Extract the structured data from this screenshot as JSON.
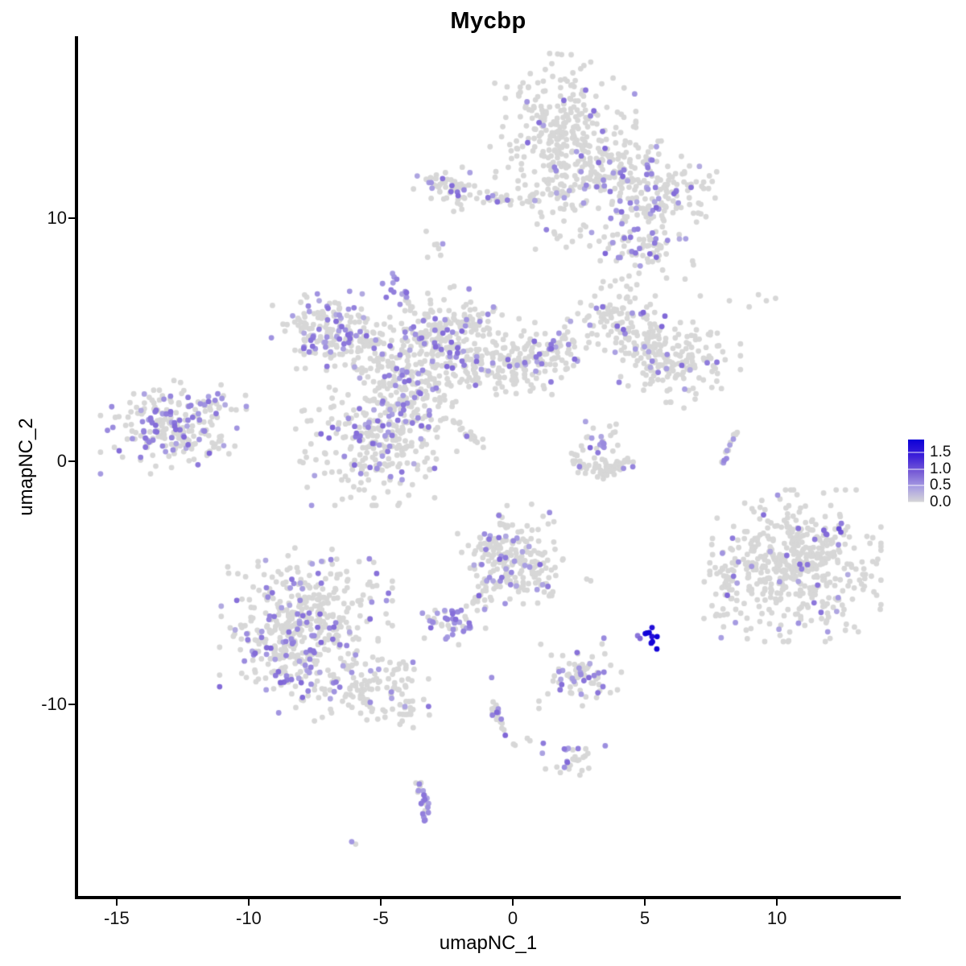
{
  "chart_data": {
    "type": "scatter",
    "title": "Mycbp",
    "xlabel": "umapNC_1",
    "ylabel": "umapNC_2",
    "xlim": [
      -16.52,
      14.66
    ],
    "ylim": [
      -17.95,
      17.48
    ],
    "xticks": [
      {
        "value": -15,
        "label": "-15"
      },
      {
        "value": -10,
        "label": "-10"
      },
      {
        "value": -5,
        "label": "-5"
      },
      {
        "value": 0,
        "label": "0"
      },
      {
        "value": 5,
        "label": "5"
      },
      {
        "value": 10,
        "label": "10"
      }
    ],
    "yticks": [
      {
        "value": 10,
        "label": "10"
      },
      {
        "value": 0,
        "label": "0"
      },
      {
        "value": -10,
        "label": "-10"
      }
    ],
    "grid": false,
    "legend_position": "right",
    "legend": {
      "vmin": 0,
      "vmax": 1.9,
      "ticks": [
        {
          "value": 1.5,
          "label": "1.5"
        },
        {
          "value": 1.0,
          "label": "1.0"
        },
        {
          "value": 0.5,
          "label": "0.5"
        },
        {
          "value": 0.0,
          "label": "0.0"
        }
      ]
    },
    "colors": {
      "grey": "#d7d7d7",
      "gradient_stops": [
        [
          0,
          "#d7d7d7"
        ],
        [
          0.45,
          "#a99fe2"
        ],
        [
          0.9,
          "#7a5fd6"
        ],
        [
          1.4,
          "#3c20d9"
        ],
        [
          1.9,
          "#0d00d8"
        ]
      ]
    },
    "point_radius_px": 3.4,
    "clusters": [
      {
        "name": "top-main",
        "shape": "gauss",
        "x": 1.9,
        "y": 13.65,
        "sx": 1.15,
        "sy": 1.3,
        "n": 290,
        "frac": 0.07
      },
      {
        "name": "top-below",
        "shape": "gauss",
        "x": 2.0,
        "y": 11.0,
        "sx": 0.75,
        "sy": 0.95,
        "n": 70,
        "frac": 0.1
      },
      {
        "name": "top-right-lobe",
        "shape": "gauss",
        "x": 5.2,
        "y": 11.25,
        "sx": 1.05,
        "sy": 0.8,
        "n": 175,
        "frac": 0.2
      },
      {
        "name": "top-bridge",
        "shape": "gauss",
        "x": 3.85,
        "y": 11.9,
        "sx": 0.6,
        "sy": 0.5,
        "n": 50,
        "frac": 0.1
      },
      {
        "name": "top-left-small",
        "shape": "gauss",
        "x": -2.2,
        "y": 11.2,
        "sx": 0.65,
        "sy": 0.45,
        "n": 60,
        "frac": 0.12
      },
      {
        "name": "top-lower",
        "shape": "gauss",
        "x": 4.8,
        "y": 8.95,
        "sx": 0.85,
        "sy": 0.78,
        "n": 90,
        "frac": 0.18
      },
      {
        "name": "top-sparse",
        "shape": "gauss",
        "x": 1.9,
        "y": 9.3,
        "sx": 0.55,
        "sy": 0.4,
        "n": 6,
        "frac": 0
      },
      {
        "name": "tiny-a",
        "shape": "gauss",
        "x": -2.75,
        "y": 8.6,
        "sx": 0.22,
        "sy": 0.5,
        "n": 7,
        "frac": 0.14
      },
      {
        "name": "purple-knob",
        "shape": "gauss",
        "x": -4.55,
        "y": 7.2,
        "sx": 0.27,
        "sy": 0.27,
        "n": 9,
        "frac": 0.85,
        "vmin": 0.45,
        "vmax": 0.75
      },
      {
        "name": "midx-nw",
        "shape": "gauss",
        "x": -7.1,
        "y": 5.45,
        "sx": 0.85,
        "sy": 0.7,
        "n": 130,
        "frac": 0.3
      },
      {
        "name": "midx-arc",
        "shape": "gauss",
        "x": -5.5,
        "y": 4.6,
        "sx": 1.0,
        "sy": 0.78,
        "n": 115,
        "frac": 0.15
      },
      {
        "name": "midx-center",
        "shape": "gauss",
        "x": -3.6,
        "y": 3.6,
        "sx": 0.95,
        "sy": 0.8,
        "n": 160,
        "frac": 0.2
      },
      {
        "name": "midx-ne",
        "shape": "gauss",
        "x": -1.8,
        "y": 5.75,
        "sx": 0.7,
        "sy": 0.6,
        "n": 90,
        "frac": 0.18
      },
      {
        "name": "midx-neck",
        "shape": "gauss",
        "x": -2.95,
        "y": 4.85,
        "sx": 0.45,
        "sy": 0.5,
        "n": 50,
        "frac": 0.2
      },
      {
        "name": "midx-e1",
        "shape": "gauss",
        "x": -0.8,
        "y": 4.1,
        "sx": 0.8,
        "sy": 0.6,
        "n": 110,
        "frac": 0.1
      },
      {
        "name": "midx-e2",
        "shape": "gauss",
        "x": 1.05,
        "y": 4.3,
        "sx": 0.75,
        "sy": 0.65,
        "n": 110,
        "frac": 0.1
      },
      {
        "name": "midx-ne2",
        "shape": "gauss",
        "x": 3.8,
        "y": 6.0,
        "sx": 0.75,
        "sy": 0.6,
        "n": 90,
        "frac": 0.18
      },
      {
        "name": "midx-bridge",
        "shape": "gauss",
        "x": 4.95,
        "y": 4.9,
        "sx": 0.5,
        "sy": 0.5,
        "n": 40,
        "frac": 0.1
      },
      {
        "name": "midx-east",
        "shape": "gauss",
        "x": 6.1,
        "y": 4.15,
        "sx": 1.05,
        "sy": 0.85,
        "n": 160,
        "frac": 0.07
      },
      {
        "name": "midx-south",
        "shape": "gauss",
        "x": -5.1,
        "y": 0.7,
        "sx": 1.3,
        "sy": 1.05,
        "n": 270,
        "frac": 0.15
      },
      {
        "name": "midx-south-top",
        "shape": "gauss",
        "x": -4.2,
        "y": 2.35,
        "sx": 0.6,
        "sy": 0.55,
        "n": 60,
        "frac": 0.2
      },
      {
        "name": "far-left",
        "shape": "gauss",
        "x": -12.85,
        "y": 1.4,
        "sx": 1.15,
        "sy": 0.8,
        "n": 230,
        "frac": 0.32
      },
      {
        "name": "crescent-fill",
        "shape": "gauss",
        "x": 3.3,
        "y": 0.7,
        "sx": 0.55,
        "sy": 0.4,
        "n": 25,
        "frac": 0.2
      },
      {
        "name": "right-big",
        "shape": "gauss",
        "x": 10.7,
        "y": -4.3,
        "sx": 1.35,
        "sy": 1.3,
        "n": 470,
        "frac": 0.07
      },
      {
        "name": "right-appendage",
        "shape": "gauss",
        "x": 8.15,
        "y": -5.1,
        "sx": 0.38,
        "sy": 0.85,
        "n": 45,
        "frac": 0.1
      },
      {
        "name": "mid-bottom",
        "shape": "gauss",
        "x": -0.05,
        "y": -3.85,
        "sx": 0.85,
        "sy": 0.9,
        "n": 210,
        "frac": 0.13
      },
      {
        "name": "purple-small",
        "shape": "gauss",
        "x": -2.35,
        "y": -6.6,
        "sx": 0.55,
        "sy": 0.32,
        "n": 48,
        "frac": 0.5,
        "vmin": 0.4,
        "vmax": 0.8
      },
      {
        "name": "bottomleft-top",
        "shape": "gauss",
        "x": -7.8,
        "y": -5.85,
        "sx": 1.35,
        "sy": 0.95,
        "n": 230,
        "frac": 0.15
      },
      {
        "name": "bottomleft-mid",
        "shape": "gauss",
        "x": -8.1,
        "y": -7.95,
        "sx": 1.25,
        "sy": 1.0,
        "n": 260,
        "frac": 0.2
      },
      {
        "name": "bottomleft-tail",
        "shape": "gauss",
        "x": -5.35,
        "y": -9.25,
        "sx": 0.9,
        "sy": 0.6,
        "n": 100,
        "frac": 0.15
      },
      {
        "name": "bottomleft-ext",
        "shape": "gauss",
        "x": -4.0,
        "y": -10.2,
        "sx": 0.35,
        "sy": 0.35,
        "n": 18,
        "frac": 0.2
      },
      {
        "name": "low-mid-cluster",
        "shape": "gauss",
        "x": 2.55,
        "y": -8.85,
        "sx": 0.65,
        "sy": 0.55,
        "n": 75,
        "frac": 0.35
      },
      {
        "name": "low-cluster2",
        "shape": "gauss",
        "x": 2.3,
        "y": -12.25,
        "sx": 0.5,
        "sy": 0.3,
        "n": 30,
        "frac": 0.35
      },
      {
        "name": "blue-blob",
        "shape": "gauss",
        "x": 5.15,
        "y": -7.1,
        "sx": 0.2,
        "sy": 0.26,
        "n": 9,
        "frac": 1.0,
        "vmin": 1.55,
        "vmax": 1.9
      },
      {
        "name": "blue-blob-light",
        "shape": "gauss",
        "x": 4.82,
        "y": -7.25,
        "sx": 0.1,
        "sy": 0.1,
        "n": 2,
        "frac": 1.0,
        "vmin": 0.7,
        "vmax": 0.9
      },
      {
        "name": "top-chain",
        "shape": "line",
        "x1": -1.1,
        "y1": 10.8,
        "x2": 0.9,
        "y2": 10.8,
        "n": 30,
        "jitter": 0.12,
        "frac": 0.05
      },
      {
        "name": "chain-up",
        "shape": "line",
        "x1": -3.85,
        "y1": 6.0,
        "x2": -4.05,
        "y2": 6.95,
        "n": 12,
        "jitter": 0.1,
        "frac": 0.3
      },
      {
        "name": "diag-trail",
        "shape": "line",
        "x1": -2.6,
        "y1": 1.95,
        "x2": -1.2,
        "y2": 0.7,
        "n": 22,
        "jitter": 0.08,
        "frac": 0.05
      },
      {
        "name": "farleft-tail",
        "shape": "line",
        "x1": -11.8,
        "y1": 2.35,
        "x2": -11.2,
        "y2": 2.8,
        "n": 8,
        "jitter": 0.1,
        "frac": 0.5
      },
      {
        "name": "midbottom-arm-left",
        "shape": "line",
        "x1": -1.0,
        "y1": -4.9,
        "x2": -1.5,
        "y2": -5.85,
        "n": 16,
        "jitter": 0.07,
        "frac": 0.1
      },
      {
        "name": "midbottom-arm-right",
        "shape": "line",
        "x1": 0.8,
        "y1": -4.55,
        "x2": 1.5,
        "y2": -5.65,
        "n": 22,
        "jitter": 0.1,
        "frac": 0.15
      },
      {
        "name": "low-trail",
        "shape": "line",
        "x1": -0.75,
        "y1": -9.95,
        "x2": 0.1,
        "y2": -11.95,
        "n": 22,
        "jitter": 0.08,
        "frac": 0.3
      },
      {
        "name": "crescent-arc",
        "shape": "curve",
        "p0": [
          1.95,
          0.4
        ],
        "p1": [
          3.3,
          -1.1
        ],
        "p2": [
          4.6,
          0.15
        ],
        "n": 60,
        "jitter": 0.13,
        "frac": 0.08
      },
      {
        "name": "sliver",
        "shape": "curve",
        "p0": [
          8.5,
          1.25
        ],
        "p1": [
          8.1,
          0.55
        ],
        "p2": [
          7.95,
          -0.2
        ],
        "n": 14,
        "jitter": 0.05,
        "frac": 0.45
      },
      {
        "name": "j-curve",
        "shape": "curve",
        "p0": [
          -3.6,
          -13.25
        ],
        "p1": [
          -3.18,
          -14.0
        ],
        "p2": [
          -3.35,
          -14.75
        ],
        "n": 26,
        "jitter": 0.1,
        "frac": 0.55,
        "vmin": 0.4,
        "vmax": 0.8
      },
      {
        "name": "crescent-knob",
        "shape": "points",
        "pts": [
          [
            3.38,
            0.78,
            0.55
          ],
          [
            3.45,
            0.72,
            0.6
          ],
          [
            3.3,
            0.68,
            0.5
          ],
          [
            3.4,
            0.62,
            0.45
          ]
        ]
      },
      {
        "name": "single-purple",
        "shape": "points",
        "pts": [
          [
            -4.27,
            6.45,
            0.55
          ]
        ]
      },
      {
        "name": "right-dark-pair",
        "shape": "points",
        "pts": [
          [
            12.35,
            -2.78,
            1.05
          ],
          [
            12.42,
            -2.92,
            0.95
          ]
        ]
      },
      {
        "name": "near-blob-pair",
        "shape": "points",
        "pts": [
          [
            3.45,
            -7.28,
            0.6
          ],
          [
            3.38,
            -7.52,
            0
          ]
        ]
      },
      {
        "name": "trail-top-purple",
        "shape": "points",
        "pts": [
          [
            -0.8,
            -8.9,
            0.55
          ]
        ]
      },
      {
        "name": "trail-pair",
        "shape": "points",
        "pts": [
          [
            0.55,
            -11.4,
            0
          ],
          [
            0.65,
            -11.5,
            0
          ]
        ]
      },
      {
        "name": "bottom-pair",
        "shape": "points",
        "pts": [
          [
            -6.1,
            -15.65,
            0.5
          ],
          [
            -5.95,
            -15.75,
            0
          ]
        ]
      },
      {
        "name": "topright-sparse",
        "shape": "points",
        "pts": [
          [
            7.1,
            6.8,
            0
          ],
          [
            8.2,
            6.6,
            0
          ],
          [
            9.3,
            6.85,
            0
          ],
          [
            9.6,
            6.6,
            0
          ],
          [
            8.95,
            6.35,
            0
          ],
          [
            9.95,
            6.7,
            0
          ],
          [
            7.8,
            4.75,
            0
          ],
          [
            7.95,
            4.5,
            0
          ]
        ]
      },
      {
        "name": "stray-greys",
        "shape": "points",
        "pts": [
          [
            2.8,
            -4.85,
            0
          ],
          [
            2.95,
            -4.92,
            0
          ],
          [
            -3.35,
            -7.28,
            0
          ],
          [
            -2.05,
            -7.55,
            0
          ]
        ]
      }
    ]
  }
}
